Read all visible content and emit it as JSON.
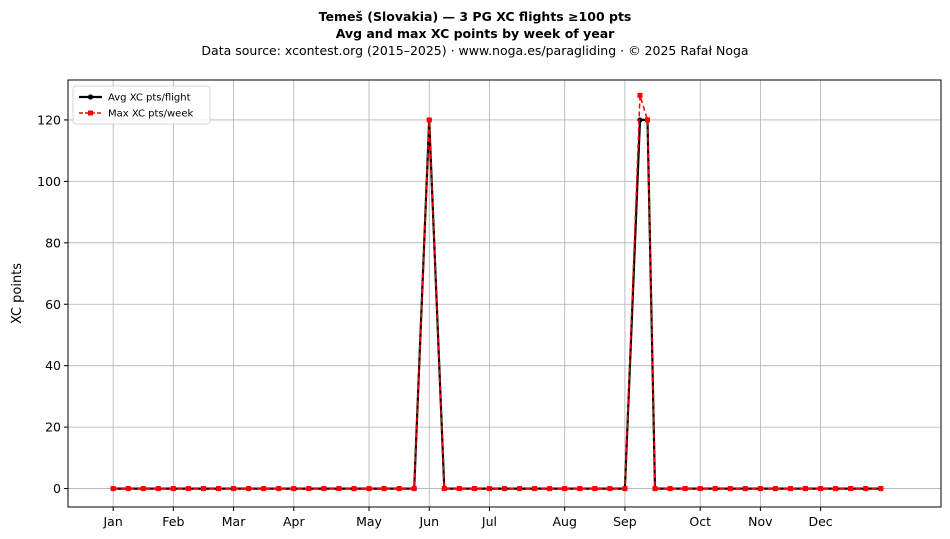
{
  "title": {
    "line1": "Temeš (Slovakia)  —  3 PG XC flights ≥100 pts",
    "line2": "Avg and max XC points by week of year",
    "line3": "Data source: xcontest.org (2015–2025)  ·  www.noga.es/paragliding  ·  © 2025 Rafał Noga"
  },
  "colors": {
    "avg": "#000000",
    "max": "#ff0000",
    "grid": "#b0b0b0"
  },
  "chart_data": {
    "type": "line",
    "ylabel": "XC points",
    "xlabel": "",
    "ylim": [
      -6,
      133
    ],
    "yticks": [
      0,
      20,
      40,
      60,
      80,
      100,
      120
    ],
    "xlim": [
      -3,
      55
    ],
    "xticks": [
      {
        "label": "Jan",
        "week": 0
      },
      {
        "label": "Feb",
        "week": 4
      },
      {
        "label": "Mar",
        "week": 8
      },
      {
        "label": "Apr",
        "week": 12
      },
      {
        "label": "May",
        "week": 17
      },
      {
        "label": "Jun",
        "week": 21
      },
      {
        "label": "Jul",
        "week": 25
      },
      {
        "label": "Aug",
        "week": 30
      },
      {
        "label": "Sep",
        "week": 34
      },
      {
        "label": "Oct",
        "week": 39
      },
      {
        "label": "Nov",
        "week": 43
      },
      {
        "label": "Dec",
        "week": 47
      }
    ],
    "grid": true,
    "legend_position": "top-left",
    "series": [
      {
        "name": "Avg XC pts/flight",
        "style": "solid-circle",
        "x": [
          0,
          1,
          2,
          3,
          4,
          5,
          6,
          7,
          8,
          9,
          10,
          11,
          12,
          13,
          14,
          15,
          16,
          17,
          18,
          19,
          20,
          21,
          22,
          23,
          24,
          25,
          26,
          27,
          28,
          29,
          30,
          31,
          32,
          33,
          34,
          35,
          35.5,
          36,
          37,
          38,
          39,
          40,
          41,
          42,
          43,
          44,
          45,
          46,
          47,
          48,
          49,
          50,
          51
        ],
        "values": [
          0,
          0,
          0,
          0,
          0,
          0,
          0,
          0,
          0,
          0,
          0,
          0,
          0,
          0,
          0,
          0,
          0,
          0,
          0,
          0,
          0,
          120,
          0,
          0,
          0,
          0,
          0,
          0,
          0,
          0,
          0,
          0,
          0,
          0,
          0,
          120,
          120,
          0,
          0,
          0,
          0,
          0,
          0,
          0,
          0,
          0,
          0,
          0,
          0,
          0,
          0,
          0,
          0
        ]
      },
      {
        "name": "Max XC pts/week",
        "style": "dashed-square",
        "x": [
          0,
          1,
          2,
          3,
          4,
          5,
          6,
          7,
          8,
          9,
          10,
          11,
          12,
          13,
          14,
          15,
          16,
          17,
          18,
          19,
          20,
          21,
          22,
          23,
          24,
          25,
          26,
          27,
          28,
          29,
          30,
          31,
          32,
          33,
          34,
          35,
          35.5,
          36,
          37,
          38,
          39,
          40,
          41,
          42,
          43,
          44,
          45,
          46,
          47,
          48,
          49,
          50,
          51
        ],
        "values": [
          0,
          0,
          0,
          0,
          0,
          0,
          0,
          0,
          0,
          0,
          0,
          0,
          0,
          0,
          0,
          0,
          0,
          0,
          0,
          0,
          0,
          120,
          0,
          0,
          0,
          0,
          0,
          0,
          0,
          0,
          0,
          0,
          0,
          0,
          0,
          128,
          120,
          0,
          0,
          0,
          0,
          0,
          0,
          0,
          0,
          0,
          0,
          0,
          0,
          0,
          0,
          0,
          0
        ]
      }
    ]
  }
}
